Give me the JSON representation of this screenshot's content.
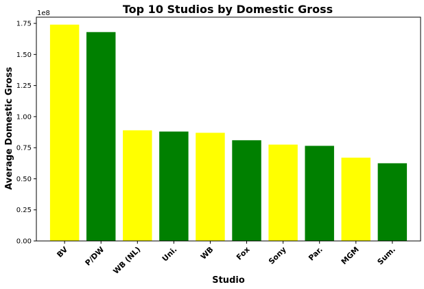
{
  "chart_data": {
    "type": "bar",
    "title": "Top 10 Studios by Domestic Gross",
    "xlabel": "Studio",
    "ylabel": "Average Domestic Gross",
    "y_offset_label": "1e8",
    "categories": [
      "BV",
      "P/DW",
      "WB (NL)",
      "Uni.",
      "WB",
      "Fox",
      "Sony",
      "Par.",
      "MGM",
      "Sum."
    ],
    "values": [
      1.74,
      1.68,
      0.89,
      0.88,
      0.87,
      0.81,
      0.775,
      0.765,
      0.67,
      0.625
    ],
    "bar_colors": [
      "#ffff00",
      "#008000",
      "#ffff00",
      "#008000",
      "#ffff00",
      "#008000",
      "#ffff00",
      "#008000",
      "#ffff00",
      "#008000"
    ],
    "ylim": [
      0,
      1.8
    ],
    "yticks": [
      0.0,
      0.25,
      0.5,
      0.75,
      1.0,
      1.25,
      1.5,
      1.75
    ],
    "ytick_labels": [
      "0.00",
      "0.25",
      "0.50",
      "0.75",
      "1.00",
      "1.25",
      "1.50",
      "1.75"
    ],
    "grid": false,
    "legend": "none"
  }
}
